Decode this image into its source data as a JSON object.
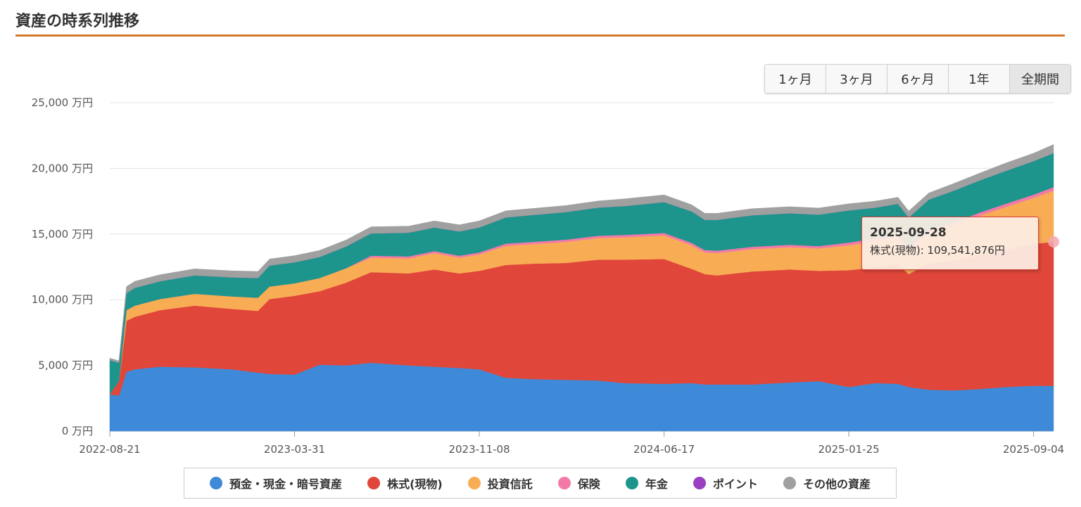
{
  "page": {
    "title": "資産の時系列推移"
  },
  "range_buttons": [
    {
      "label": "1ヶ月",
      "active": false
    },
    {
      "label": "3ヶ月",
      "active": false
    },
    {
      "label": "6ヶ月",
      "active": false
    },
    {
      "label": "1年",
      "active": false
    },
    {
      "label": "全期間",
      "active": true
    }
  ],
  "chart_data": {
    "type": "area",
    "stacked": true,
    "y_unit": "万円",
    "ylim": [
      0,
      25000
    ],
    "y_ticks": [
      "25,000 万円",
      "20,000 万円",
      "15,000 万円",
      "10,000 万円",
      "5,000 万円",
      "0 万円"
    ],
    "y_tick_values": [
      25000,
      20000,
      15000,
      10000,
      5000,
      0
    ],
    "xlim": [
      "2022-08-21",
      "2025-09-28"
    ],
    "x_ticks": [
      "2022-08-21",
      "2023-03-31",
      "2023-11-08",
      "2024-06-17",
      "2025-01-25",
      "2025-09-04"
    ],
    "grid": true,
    "legend_position": "bottom",
    "x": [
      "2022-08-21",
      "2022-09-01",
      "2022-09-10",
      "2022-09-20",
      "2022-10-20",
      "2022-12-01",
      "2023-01-15",
      "2023-02-15",
      "2023-03-01",
      "2023-03-31",
      "2023-04-30",
      "2023-06-01",
      "2023-07-01",
      "2023-08-15",
      "2023-09-15",
      "2023-10-15",
      "2023-11-08",
      "2023-12-10",
      "2024-01-15",
      "2024-02-20",
      "2024-03-30",
      "2024-05-01",
      "2024-06-17",
      "2024-07-20",
      "2024-08-05",
      "2024-08-20",
      "2024-10-01",
      "2024-11-15",
      "2024-12-20",
      "2025-01-25",
      "2025-02-25",
      "2025-03-25",
      "2025-04-07",
      "2025-05-01",
      "2025-06-01",
      "2025-07-01",
      "2025-08-01",
      "2025-09-04",
      "2025-09-28"
    ],
    "series": [
      {
        "name": "預金・現金・暗号資産",
        "color": "#3e8ad8",
        "values": [
          2800,
          2700,
          4500,
          4700,
          4900,
          4850,
          4700,
          4450,
          4350,
          4300,
          5050,
          5000,
          5200,
          5000,
          4900,
          4800,
          4700,
          4050,
          3950,
          3900,
          3850,
          3650,
          3600,
          3650,
          3550,
          3550,
          3550,
          3700,
          3800,
          3350,
          3650,
          3600,
          3350,
          3150,
          3100,
          3200,
          3350,
          3450,
          3450
        ]
      },
      {
        "name": "株式(現物)",
        "color": "#e0473a",
        "values": [
          0,
          1100,
          3900,
          4000,
          4300,
          4700,
          4600,
          4700,
          5700,
          6000,
          5600,
          6300,
          6900,
          7000,
          7400,
          7200,
          7500,
          8600,
          8800,
          8900,
          9200,
          9400,
          9500,
          8700,
          8400,
          8300,
          8600,
          8600,
          8400,
          8900,
          8800,
          9100,
          8600,
          9600,
          9900,
          10200,
          10400,
          10800,
          10954
        ]
      },
      {
        "name": "投資信託",
        "color": "#f8ad55",
        "values": [
          0,
          0,
          800,
          850,
          850,
          900,
          950,
          1000,
          950,
          950,
          1000,
          1100,
          1100,
          1150,
          1250,
          1200,
          1250,
          1450,
          1500,
          1600,
          1650,
          1700,
          1800,
          1800,
          1650,
          1700,
          1700,
          1700,
          1700,
          1900,
          2000,
          2000,
          1800,
          2300,
          2700,
          3000,
          3300,
          3500,
          3900
        ]
      },
      {
        "name": "保険",
        "color": "#f27aa8",
        "values": [
          0,
          0,
          0,
          0,
          0,
          0,
          0,
          0,
          0,
          0,
          0,
          0,
          150,
          150,
          150,
          150,
          150,
          170,
          170,
          170,
          170,
          180,
          180,
          180,
          180,
          180,
          180,
          180,
          180,
          200,
          200,
          200,
          200,
          220,
          220,
          230,
          240,
          250,
          260
        ]
      },
      {
        "name": "年金",
        "color": "#1e958c",
        "values": [
          2600,
          1400,
          1300,
          1350,
          1350,
          1400,
          1450,
          1500,
          1600,
          1600,
          1600,
          1650,
          1700,
          1800,
          1800,
          1850,
          1900,
          2000,
          2050,
          2100,
          2150,
          2200,
          2350,
          2400,
          2300,
          2350,
          2400,
          2400,
          2400,
          2450,
          2350,
          2400,
          2300,
          2350,
          2400,
          2450,
          2500,
          2550,
          2600
        ]
      },
      {
        "name": "ポイント",
        "color": "#9a3fbf",
        "values": [
          0,
          0,
          0,
          0,
          0,
          0,
          0,
          0,
          0,
          0,
          0,
          0,
          0,
          0,
          0,
          0,
          0,
          0,
          0,
          0,
          0,
          0,
          0,
          0,
          0,
          0,
          0,
          0,
          0,
          0,
          0,
          0,
          0,
          0,
          0,
          0,
          0,
          0,
          0
        ]
      },
      {
        "name": "その他の資産",
        "color": "#a0a0a0",
        "values": [
          150,
          150,
          500,
          500,
          500,
          500,
          500,
          500,
          500,
          500,
          500,
          500,
          500,
          500,
          500,
          500,
          500,
          500,
          500,
          500,
          500,
          550,
          550,
          500,
          500,
          500,
          500,
          500,
          500,
          500,
          500,
          500,
          500,
          500,
          550,
          550,
          600,
          600,
          650
        ]
      }
    ],
    "tooltip": {
      "date": "2025-09-28",
      "text": "株式(現物): 109,541,876円",
      "series": "株式(現物)"
    }
  }
}
